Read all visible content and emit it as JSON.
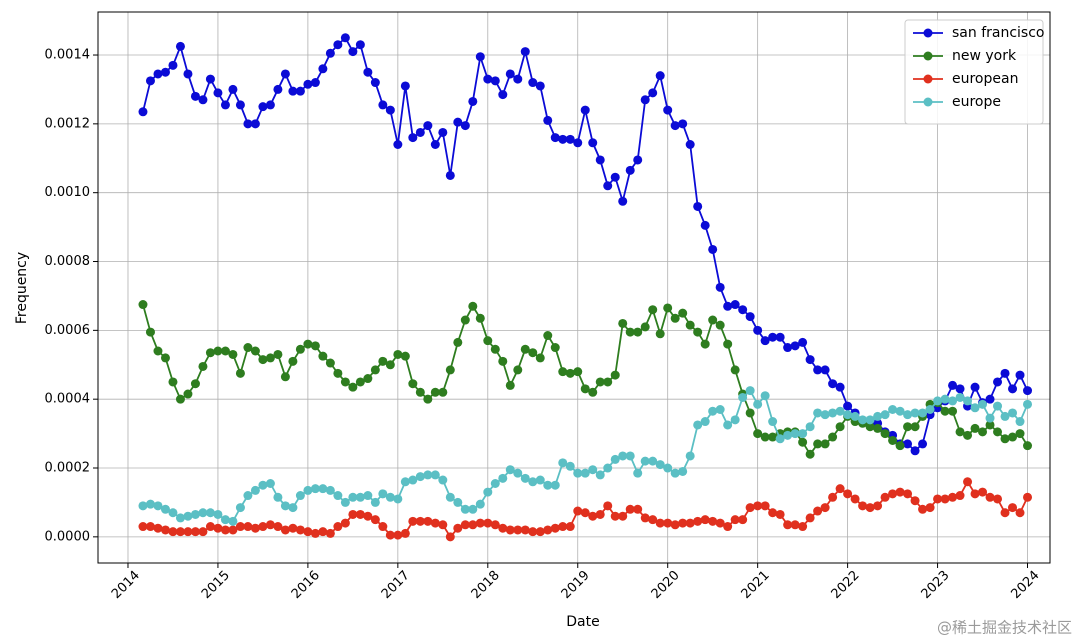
{
  "chart_data": {
    "type": "line",
    "xlabel": "Date",
    "ylabel": "Frequency",
    "watermark": "@稀土掘金技术社区",
    "legend": "upper right",
    "grid": true,
    "marker": "circle",
    "xlim": [
      "2013-09",
      "2024-04"
    ],
    "xticks": [
      "2014",
      "2015",
      "2016",
      "2017",
      "2018",
      "2019",
      "2020",
      "2021",
      "2022",
      "2023",
      "2024"
    ],
    "ylim": [
      -7.6e-05,
      0.001525
    ],
    "yticks": [
      {
        "value": 0,
        "label": "0.0000"
      },
      {
        "value": 0.0002,
        "label": "0.0002"
      },
      {
        "value": 0.0004,
        "label": "0.0004"
      },
      {
        "value": 0.0006,
        "label": "0.0006"
      },
      {
        "value": 0.0008,
        "label": "0.0008"
      },
      {
        "value": 0.001,
        "label": "0.0010"
      },
      {
        "value": 0.0012,
        "label": "0.0012"
      },
      {
        "value": 0.0014,
        "label": "0.0014"
      }
    ],
    "x": [
      "2014-03",
      "2014-04",
      "2014-05",
      "2014-06",
      "2014-07",
      "2014-08",
      "2014-09",
      "2014-10",
      "2014-11",
      "2014-12",
      "2015-01",
      "2015-02",
      "2015-03",
      "2015-04",
      "2015-05",
      "2015-06",
      "2015-07",
      "2015-08",
      "2015-09",
      "2015-10",
      "2015-11",
      "2015-12",
      "2016-01",
      "2016-02",
      "2016-03",
      "2016-04",
      "2016-05",
      "2016-06",
      "2016-07",
      "2016-08",
      "2016-09",
      "2016-10",
      "2016-11",
      "2016-12",
      "2017-01",
      "2017-02",
      "2017-03",
      "2017-04",
      "2017-05",
      "2017-06",
      "2017-07",
      "2017-08",
      "2017-09",
      "2017-10",
      "2017-11",
      "2017-12",
      "2018-01",
      "2018-02",
      "2018-03",
      "2018-04",
      "2018-05",
      "2018-06",
      "2018-07",
      "2018-08",
      "2018-09",
      "2018-10",
      "2018-11",
      "2018-12",
      "2019-01",
      "2019-02",
      "2019-03",
      "2019-04",
      "2019-05",
      "2019-06",
      "2019-07",
      "2019-08",
      "2019-09",
      "2019-10",
      "2019-11",
      "2019-12",
      "2020-01",
      "2020-02",
      "2020-03",
      "2020-04",
      "2020-05",
      "2020-06",
      "2020-07",
      "2020-08",
      "2020-09",
      "2020-10",
      "2020-11",
      "2020-12",
      "2021-01",
      "2021-02",
      "2021-03",
      "2021-04",
      "2021-05",
      "2021-06",
      "2021-07",
      "2021-08",
      "2021-09",
      "2021-10",
      "2021-11",
      "2021-12",
      "2022-01",
      "2022-02",
      "2022-03",
      "2022-04",
      "2022-05",
      "2022-06",
      "2022-07",
      "2022-08",
      "2022-09",
      "2022-10",
      "2022-11",
      "2022-12",
      "2023-01",
      "2023-02",
      "2023-03",
      "2023-04",
      "2023-05",
      "2023-06",
      "2023-07",
      "2023-08",
      "2023-09",
      "2023-10",
      "2023-11",
      "2023-12",
      "2024-01"
    ],
    "series": [
      {
        "name": "san francisco",
        "color": "#0b0bd6",
        "values": [
          0.001235,
          0.001325,
          0.001345,
          0.00135,
          0.00137,
          0.001425,
          0.001345,
          0.00128,
          0.00127,
          0.00133,
          0.00129,
          0.001255,
          0.0013,
          0.001255,
          0.0012,
          0.0012,
          0.00125,
          0.001255,
          0.0013,
          0.001345,
          0.001295,
          0.001295,
          0.001315,
          0.00132,
          0.00136,
          0.001405,
          0.00143,
          0.00145,
          0.00141,
          0.00143,
          0.00135,
          0.00132,
          0.001255,
          0.00124,
          0.00114,
          0.00131,
          0.00116,
          0.001175,
          0.001195,
          0.00114,
          0.001175,
          0.00105,
          0.001205,
          0.001195,
          0.001265,
          0.001395,
          0.00133,
          0.001325,
          0.001285,
          0.001345,
          0.00133,
          0.00141,
          0.00132,
          0.00131,
          0.00121,
          0.00116,
          0.001155,
          0.001155,
          0.001145,
          0.00124,
          0.001145,
          0.001095,
          0.00102,
          0.001045,
          0.000975,
          0.001065,
          0.001095,
          0.00127,
          0.00129,
          0.00134,
          0.00124,
          0.001195,
          0.0012,
          0.00114,
          0.00096,
          0.000905,
          0.000835,
          0.000725,
          0.00067,
          0.000675,
          0.00066,
          0.00064,
          0.0006,
          0.00057,
          0.00058,
          0.00058,
          0.00055,
          0.000555,
          0.000565,
          0.000515,
          0.000485,
          0.000485,
          0.000445,
          0.000435,
          0.00038,
          0.00036,
          0.000335,
          0.000335,
          0.00033,
          0.000305,
          0.000295,
          0.00027,
          0.00027,
          0.00025,
          0.00027,
          0.000355,
          0.000375,
          0.000395,
          0.00044,
          0.00043,
          0.00038,
          0.000435,
          0.00039,
          0.0004,
          0.00045,
          0.000475,
          0.00043,
          0.00047,
          0.000425
        ]
      },
      {
        "name": "new york",
        "color": "#2e7d1f",
        "values": [
          0.000675,
          0.000595,
          0.00054,
          0.00052,
          0.00045,
          0.0004,
          0.000415,
          0.000445,
          0.000495,
          0.000535,
          0.00054,
          0.00054,
          0.00053,
          0.000475,
          0.00055,
          0.00054,
          0.000515,
          0.00052,
          0.00053,
          0.000465,
          0.00051,
          0.000545,
          0.00056,
          0.000555,
          0.000525,
          0.000505,
          0.000475,
          0.00045,
          0.000435,
          0.00045,
          0.00046,
          0.000485,
          0.00051,
          0.0005,
          0.00053,
          0.000525,
          0.000445,
          0.00042,
          0.0004,
          0.00042,
          0.00042,
          0.000485,
          0.000565,
          0.00063,
          0.00067,
          0.000635,
          0.00057,
          0.000545,
          0.00051,
          0.00044,
          0.000485,
          0.000545,
          0.000535,
          0.00052,
          0.000585,
          0.00055,
          0.00048,
          0.000475,
          0.00048,
          0.00043,
          0.00042,
          0.00045,
          0.00045,
          0.00047,
          0.00062,
          0.000595,
          0.000595,
          0.00061,
          0.00066,
          0.00059,
          0.000665,
          0.000635,
          0.00065,
          0.000615,
          0.000595,
          0.00056,
          0.00063,
          0.000615,
          0.00056,
          0.000485,
          0.000415,
          0.00036,
          0.0003,
          0.00029,
          0.00029,
          0.0003,
          0.000305,
          0.000305,
          0.000275,
          0.00024,
          0.00027,
          0.00027,
          0.00029,
          0.00032,
          0.00035,
          0.000335,
          0.00033,
          0.00032,
          0.000315,
          0.0003,
          0.00028,
          0.000265,
          0.00032,
          0.00032,
          0.00035,
          0.000385,
          0.00039,
          0.000365,
          0.000365,
          0.000305,
          0.000295,
          0.000315,
          0.000305,
          0.000325,
          0.000305,
          0.000285,
          0.00029,
          0.0003,
          0.000265
        ]
      },
      {
        "name": "european",
        "color": "#e0301e",
        "values": [
          3e-05,
          3e-05,
          2.5e-05,
          2e-05,
          1.5e-05,
          1.5e-05,
          1.5e-05,
          1.5e-05,
          1.5e-05,
          3e-05,
          2.5e-05,
          2e-05,
          2e-05,
          3e-05,
          3e-05,
          2.5e-05,
          3e-05,
          3.5e-05,
          3e-05,
          2e-05,
          2.5e-05,
          2e-05,
          1.5e-05,
          1e-05,
          1.5e-05,
          1e-05,
          3e-05,
          4e-05,
          6.5e-05,
          6.5e-05,
          6e-05,
          5e-05,
          3e-05,
          5e-06,
          5e-06,
          1e-05,
          4.5e-05,
          4.5e-05,
          4.5e-05,
          4e-05,
          3.5e-05,
          0,
          2.5e-05,
          3.5e-05,
          3.5e-05,
          4e-05,
          4e-05,
          3.5e-05,
          2.5e-05,
          2e-05,
          2e-05,
          2e-05,
          1.5e-05,
          1.5e-05,
          2e-05,
          2.5e-05,
          3e-05,
          3e-05,
          7.5e-05,
          7e-05,
          6e-05,
          6.5e-05,
          9e-05,
          6e-05,
          6e-05,
          8e-05,
          8e-05,
          5.5e-05,
          5e-05,
          4e-05,
          4e-05,
          3.5e-05,
          4e-05,
          4e-05,
          4.5e-05,
          5e-05,
          4.5e-05,
          4e-05,
          3e-05,
          5e-05,
          5e-05,
          8.5e-05,
          9e-05,
          9e-05,
          7e-05,
          6.5e-05,
          3.5e-05,
          3.5e-05,
          3e-05,
          5.5e-05,
          7.5e-05,
          8.5e-05,
          0.000115,
          0.00014,
          0.000125,
          0.00011,
          9e-05,
          8.5e-05,
          9e-05,
          0.000115,
          0.000125,
          0.00013,
          0.000125,
          0.000105,
          8e-05,
          8.5e-05,
          0.00011,
          0.00011,
          0.000115,
          0.00012,
          0.00016,
          0.000125,
          0.00013,
          0.000115,
          0.00011,
          7e-05,
          8.5e-05,
          7e-05,
          0.000115
        ]
      },
      {
        "name": "europe",
        "color": "#5bbfc4",
        "values": [
          9e-05,
          9.5e-05,
          9e-05,
          8e-05,
          7e-05,
          5.5e-05,
          6e-05,
          6.5e-05,
          7e-05,
          7e-05,
          6.5e-05,
          5e-05,
          4.5e-05,
          8.5e-05,
          0.00012,
          0.000135,
          0.00015,
          0.000155,
          0.000115,
          9e-05,
          8.5e-05,
          0.00012,
          0.000135,
          0.00014,
          0.00014,
          0.000135,
          0.00012,
          0.0001,
          0.000115,
          0.000115,
          0.00012,
          0.0001,
          0.000125,
          0.000115,
          0.00011,
          0.00016,
          0.000165,
          0.000175,
          0.00018,
          0.00018,
          0.000165,
          0.000115,
          0.0001,
          8e-05,
          8e-05,
          9.5e-05,
          0.00013,
          0.000155,
          0.00017,
          0.000195,
          0.000185,
          0.00017,
          0.00016,
          0.000165,
          0.00015,
          0.00015,
          0.000215,
          0.000205,
          0.000185,
          0.000185,
          0.000195,
          0.00018,
          0.0002,
          0.000225,
          0.000235,
          0.000235,
          0.000185,
          0.00022,
          0.00022,
          0.00021,
          0.0002,
          0.000185,
          0.00019,
          0.000235,
          0.000325,
          0.000335,
          0.000365,
          0.00037,
          0.000325,
          0.00034,
          0.000405,
          0.000425,
          0.000385,
          0.00041,
          0.000335,
          0.000285,
          0.000295,
          0.0003,
          0.0003,
          0.00032,
          0.00036,
          0.000355,
          0.00036,
          0.000365,
          0.000355,
          0.00035,
          0.00034,
          0.00034,
          0.00035,
          0.000355,
          0.00037,
          0.000365,
          0.000355,
          0.00036,
          0.00036,
          0.00037,
          0.000395,
          0.0004,
          0.000395,
          0.000405,
          0.000395,
          0.000375,
          0.000385,
          0.000345,
          0.00038,
          0.00035,
          0.00036,
          0.000335,
          0.000385
        ]
      }
    ]
  }
}
